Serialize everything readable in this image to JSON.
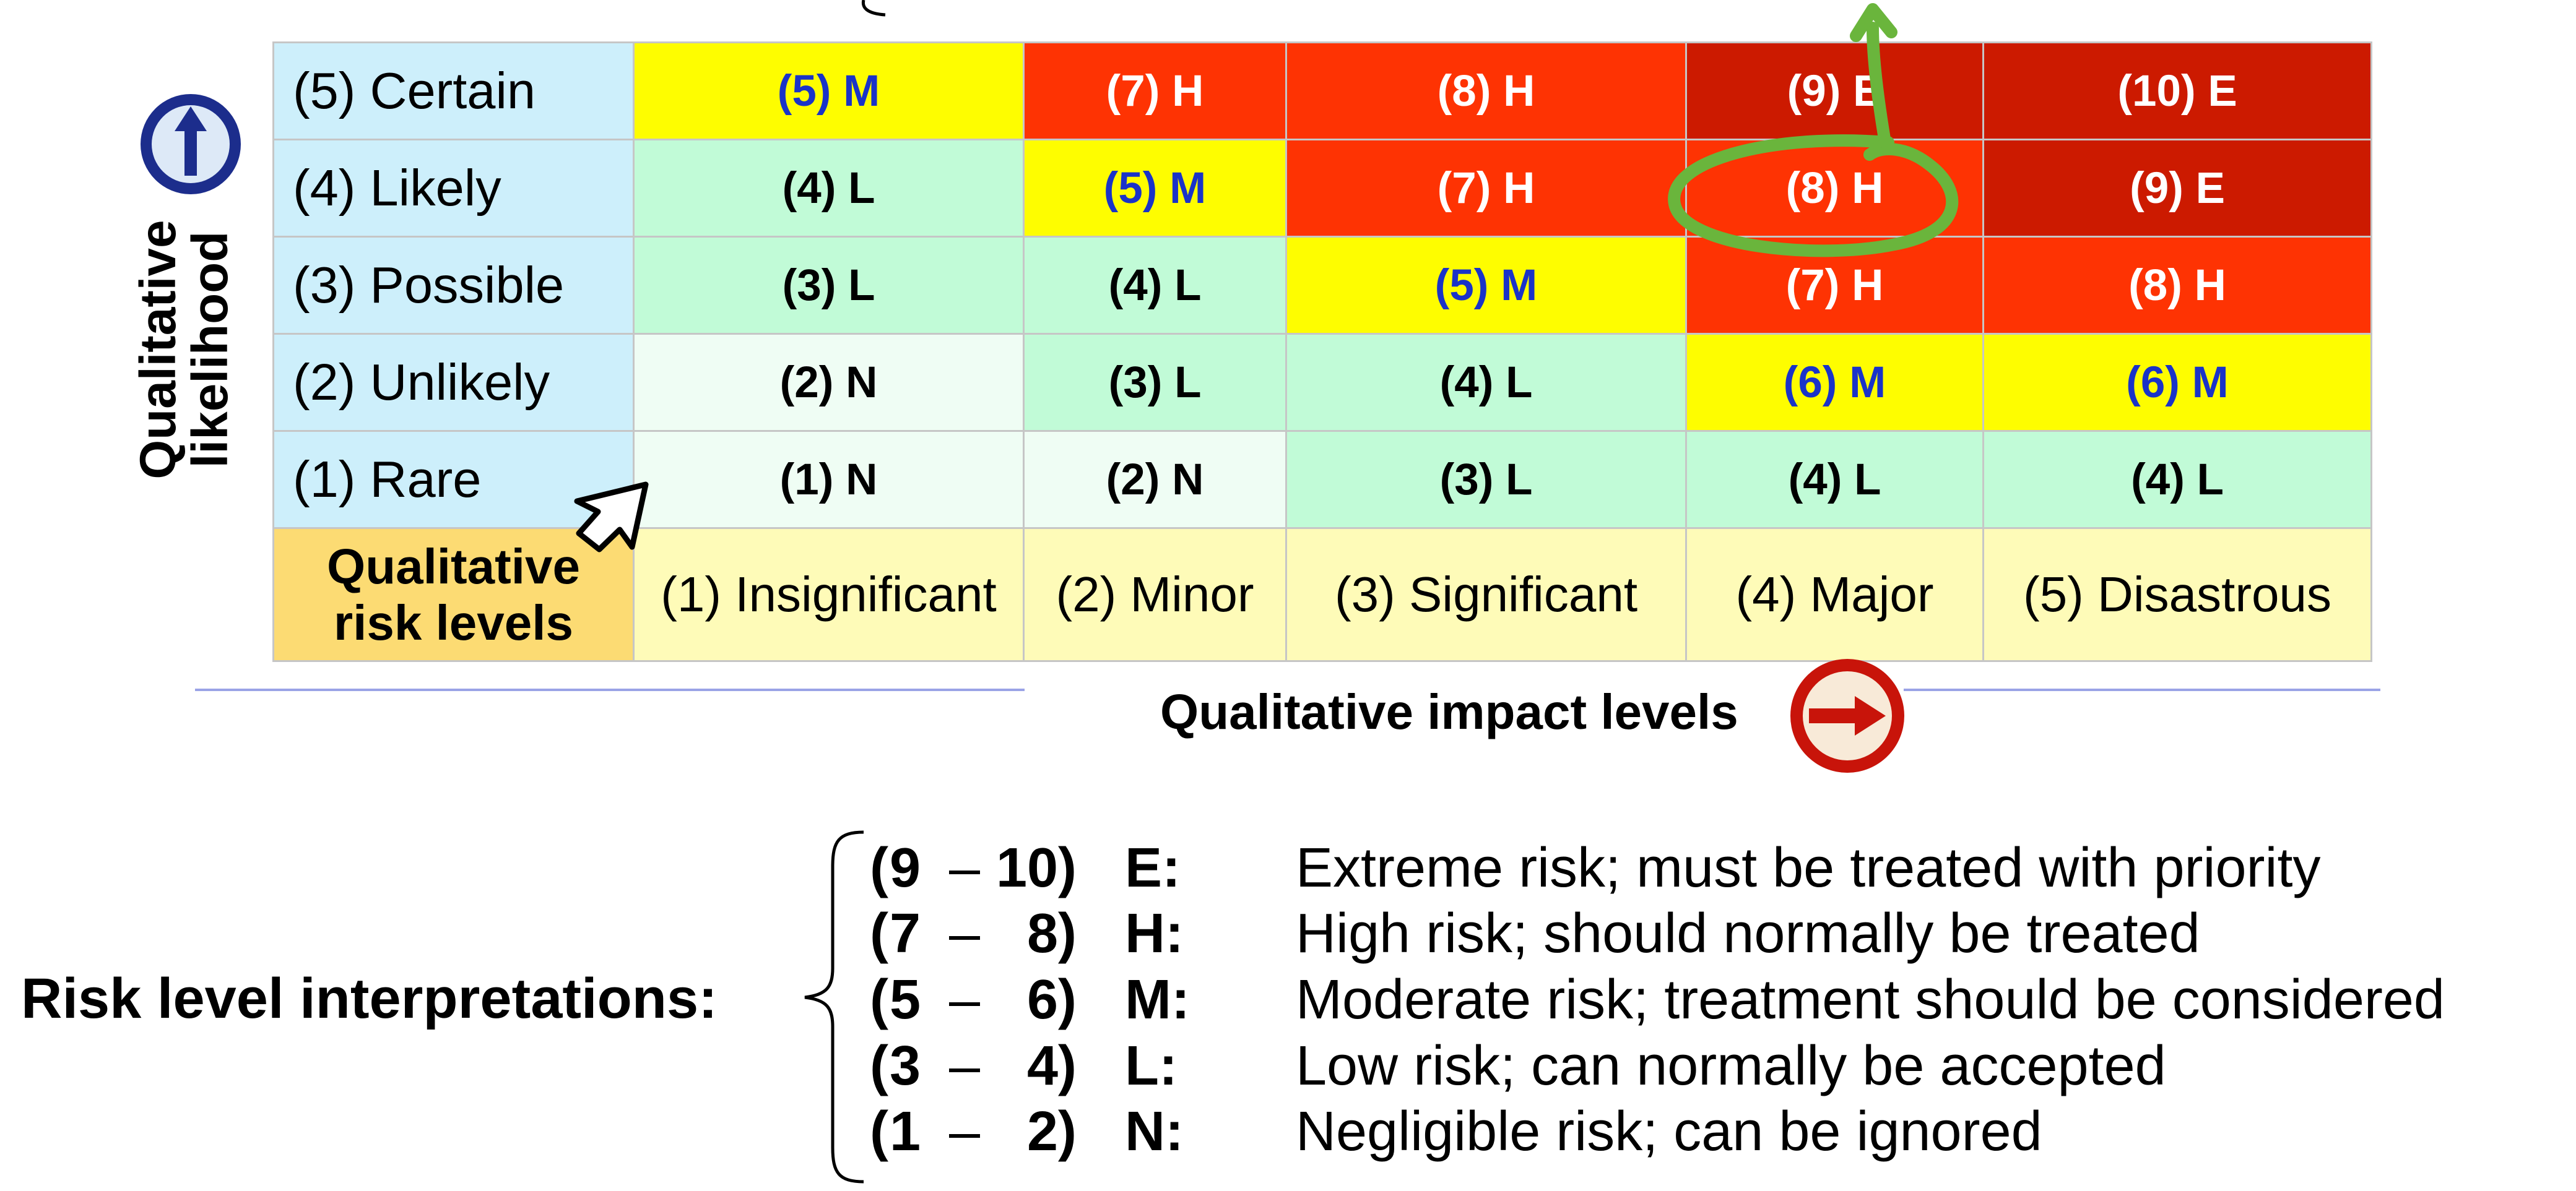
{
  "matrix": {
    "corner_label": [
      "Qualitative",
      "risk levels"
    ],
    "rows": [
      {
        "label": "(5) Certain",
        "cells": [
          {
            "text": "(5) M",
            "level": "M"
          },
          {
            "text": "(7) H",
            "level": "H"
          },
          {
            "text": "(8) H",
            "level": "H"
          },
          {
            "text": "(9) E",
            "level": "E"
          },
          {
            "text": "(10) E",
            "level": "E"
          }
        ]
      },
      {
        "label": "(4) Likely",
        "cells": [
          {
            "text": "(4) L",
            "level": "L"
          },
          {
            "text": "(5) M",
            "level": "M"
          },
          {
            "text": "(7) H",
            "level": "H"
          },
          {
            "text": "(8) H",
            "level": "H"
          },
          {
            "text": "(9) E",
            "level": "E"
          }
        ]
      },
      {
        "label": "(3) Possible",
        "cells": [
          {
            "text": "(3) L",
            "level": "L"
          },
          {
            "text": "(4) L",
            "level": "L"
          },
          {
            "text": "(5) M",
            "level": "M"
          },
          {
            "text": "(7) H",
            "level": "H"
          },
          {
            "text": "(8) H",
            "level": "H"
          }
        ]
      },
      {
        "label": "(2) Unlikely",
        "cells": [
          {
            "text": "(2) N",
            "level": "N"
          },
          {
            "text": "(3) L",
            "level": "L"
          },
          {
            "text": "(4) L",
            "level": "L"
          },
          {
            "text": "(6) M",
            "level": "M"
          },
          {
            "text": "(6) M",
            "level": "M"
          }
        ]
      },
      {
        "label": "(1) Rare",
        "cells": [
          {
            "text": "(1) N",
            "level": "N"
          },
          {
            "text": "(2) N",
            "level": "N"
          },
          {
            "text": "(3) L",
            "level": "L"
          },
          {
            "text": "(4) L",
            "level": "L"
          },
          {
            "text": "(4) L",
            "level": "L"
          }
        ]
      }
    ],
    "impact_levels": [
      "(1) Insignificant",
      "(2) Minor",
      "(3) Significant",
      "(4) Major",
      "(5) Disastrous"
    ]
  },
  "likelihood_axis_label": [
    "Qualitative",
    "likelihood"
  ],
  "impact_axis_label": "Qualitative impact levels",
  "interpretations": {
    "title": "Risk level interpretations:",
    "items": [
      {
        "lo": "9",
        "hi": "10",
        "code": "E:",
        "description": "Extreme risk; must be treated with priority"
      },
      {
        "lo": "7",
        "hi": "8",
        "code": "H:",
        "description": "High risk; should normally be treated"
      },
      {
        "lo": "5",
        "hi": "6",
        "code": "M:",
        "description": "Moderate risk; treatment should be considered"
      },
      {
        "lo": "3",
        "hi": "4",
        "code": "L:",
        "description": "Low risk; can normally be accepted"
      },
      {
        "lo": "1",
        "hi": "2",
        "code": "N:",
        "description": "Negligible risk; can be ignored"
      }
    ]
  },
  "colors": {
    "negligible": "#effdf4",
    "low": "#c1fbd7",
    "moderate": "#fefd00",
    "high": "#fe3303",
    "extreme": "#cc1a00",
    "likelihood_header": "#cdeffb",
    "impact_header": "#fefbb8",
    "corner": "#fcdb73",
    "annotation": "#6ab53c",
    "likelihood_icon": "#1c2d8c",
    "impact_icon": "#c8140a"
  },
  "icons": {
    "likelihood": "up-arrow-icon",
    "impact": "right-arrow-icon",
    "pointer": "pointer-arrow-icon",
    "annotation": "highlight-circle-arrow"
  }
}
